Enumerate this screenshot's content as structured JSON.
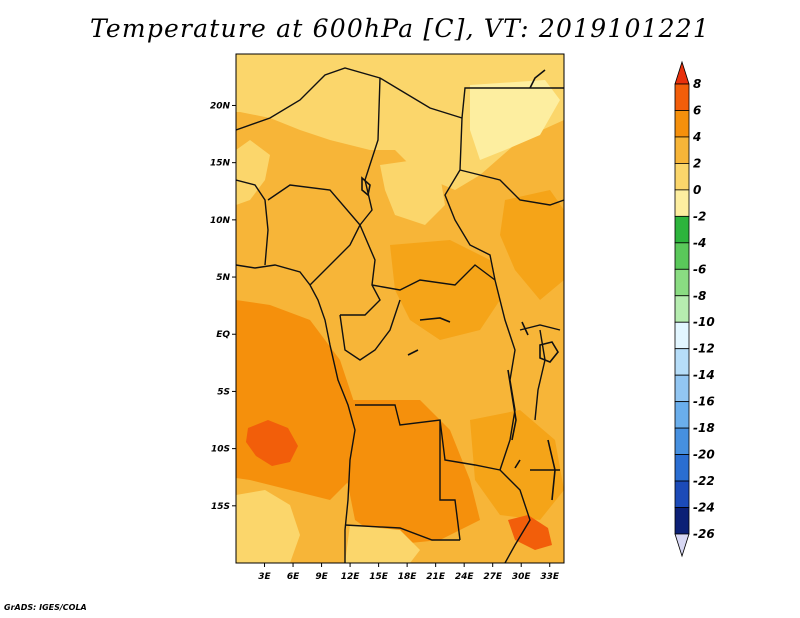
{
  "title": "Temperature at 600hPa [C], VT: 2019101221",
  "credit": "GrADS: IGES/COLA",
  "map": {
    "lon_range": [
      0,
      34.5
    ],
    "lat_range": [
      -20,
      24.5
    ],
    "x_ticks": [
      "3E",
      "6E",
      "9E",
      "12E",
      "15E",
      "18E",
      "21E",
      "24E",
      "27E",
      "30E",
      "33E"
    ],
    "y_ticks": [
      "20N",
      "15N",
      "10N",
      "5N",
      "EQ",
      "5S",
      "10S",
      "15S"
    ]
  },
  "colorbar": {
    "labels": [
      "8",
      "6",
      "4",
      "2",
      "0",
      "-2",
      "-4",
      "-6",
      "-8",
      "-10",
      "-12",
      "-14",
      "-16",
      "-18",
      "-20",
      "-22",
      "-24",
      "-26"
    ],
    "colors": [
      "#e8300c",
      "#f25e0a",
      "#f5900c",
      "#f7b538",
      "#fbd66b",
      "#fdeea0",
      "#2db43c",
      "#5ac85a",
      "#8adc82",
      "#b6edb0",
      "#e2f6ff",
      "#b6ddf8",
      "#92c6f2",
      "#6aaeec",
      "#4690e0",
      "#2a6ed2",
      "#1c4bb8",
      "#0c2076",
      "#d8d8f4"
    ]
  }
}
